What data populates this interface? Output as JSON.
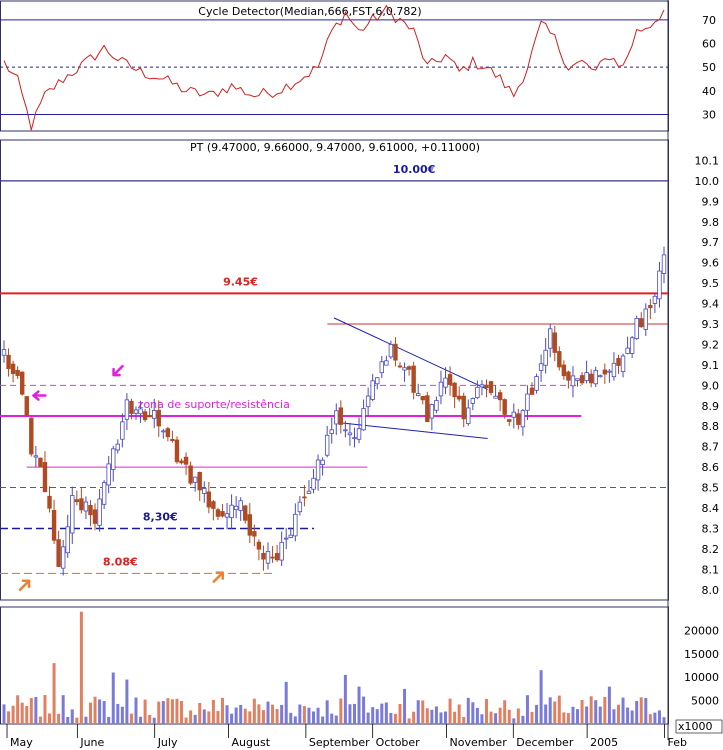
{
  "chart_data": {
    "type": "candlestick",
    "price_panel": {
      "title": "PT (9.47000, 9.66000, 9.47000, 9.61000, +0.11000)",
      "ylim": [
        7.95,
        10.2
      ],
      "ticks": [
        "8.0",
        "8.1",
        "8.2",
        "8.3",
        "8.4",
        "8.5",
        "8.6",
        "8.7",
        "8.8",
        "8.9",
        "9.0",
        "9.1",
        "9.2",
        "9.3",
        "9.4",
        "9.5",
        "9.6",
        "9.7",
        "9.8",
        "9.9",
        "10.0",
        "10.1"
      ],
      "anchors": [
        {
          "i": 0,
          "p": 9.15
        },
        {
          "i": 3,
          "p": 9.05
        },
        {
          "i": 6,
          "p": 8.7
        },
        {
          "i": 9,
          "p": 8.5
        },
        {
          "i": 12,
          "p": 8.1
        },
        {
          "i": 15,
          "p": 8.45
        },
        {
          "i": 20,
          "p": 8.35
        },
        {
          "i": 27,
          "p": 8.9
        },
        {
          "i": 33,
          "p": 8.85
        },
        {
          "i": 38,
          "p": 8.65
        },
        {
          "i": 43,
          "p": 8.5
        },
        {
          "i": 48,
          "p": 8.35
        },
        {
          "i": 52,
          "p": 8.4
        },
        {
          "i": 56,
          "p": 8.2
        },
        {
          "i": 60,
          "p": 8.15
        },
        {
          "i": 65,
          "p": 8.4
        },
        {
          "i": 69,
          "p": 8.6
        },
        {
          "i": 73,
          "p": 8.85
        },
        {
          "i": 77,
          "p": 8.75
        },
        {
          "i": 82,
          "p": 9.05
        },
        {
          "i": 85,
          "p": 9.2
        },
        {
          "i": 89,
          "p": 9.05
        },
        {
          "i": 93,
          "p": 8.85
        },
        {
          "i": 97,
          "p": 9.05
        },
        {
          "i": 101,
          "p": 8.85
        },
        {
          "i": 105,
          "p": 9.0
        },
        {
          "i": 109,
          "p": 8.9
        },
        {
          "i": 113,
          "p": 8.82
        },
        {
          "i": 117,
          "p": 9.05
        },
        {
          "i": 120,
          "p": 9.25
        },
        {
          "i": 124,
          "p": 9.0
        },
        {
          "i": 128,
          "p": 9.05
        },
        {
          "i": 132,
          "p": 9.05
        },
        {
          "i": 136,
          "p": 9.15
        },
        {
          "i": 139,
          "p": 9.3
        },
        {
          "i": 142,
          "p": 9.35
        },
        {
          "i": 145,
          "p": 9.61
        }
      ],
      "count": 146,
      "levels": [
        {
          "price": 10.0,
          "color": "#33338a",
          "width": 1.2,
          "dash": "",
          "x1": 0,
          "x2": 1,
          "label": "10.00€",
          "label_color": "#1a1aa0",
          "label_pos": 0.62
        },
        {
          "price": 9.45,
          "color": "#e02020",
          "width": 2,
          "dash": "",
          "x1": 0,
          "x2": 1,
          "label": "9.45€",
          "label_color": "#e02020",
          "label_pos": 0.36
        },
        {
          "price": 9.3,
          "color": "#c83030",
          "width": 1,
          "dash": "",
          "x1": 0.49,
          "x2": 1
        },
        {
          "price": 9.0,
          "color": "#d040d0",
          "width": 1,
          "dash": "6,4",
          "x1": 0,
          "x2": 0.87
        },
        {
          "price": 8.85,
          "color": "#e020e0",
          "width": 2,
          "dash": "",
          "x1": 0,
          "x2": 0.87,
          "label": "zona de suporte/resistência",
          "label_color": "#e020e0",
          "label_pos": 0.32
        },
        {
          "price": 8.6,
          "color": "#e020e0",
          "width": 1,
          "dash": "",
          "x1": 0.04,
          "x2": 0.55
        },
        {
          "price": 8.5,
          "color": "#307070",
          "width": 1,
          "dash": "6,4",
          "x1": 0,
          "x2": 1
        },
        {
          "price": 8.3,
          "color": "#1a1aa0",
          "width": 1.5,
          "dash": "8,4",
          "x1": 0,
          "x2": 0.47,
          "label": "8,30€",
          "label_color": "#1a1aa0",
          "label_pos": 0.24
        },
        {
          "price": 8.08,
          "color": "#e08030",
          "width": 1.2,
          "dash": "8,4",
          "x1": 0,
          "x2": 0.41,
          "label": "8.08€",
          "label_color": "#e02020",
          "label_pos": 0.18
        }
      ],
      "triangle": {
        "upper": [
          [
            0.5,
            9.33
          ],
          [
            0.73,
            8.98
          ]
        ],
        "lower": [
          [
            0.5,
            8.82
          ],
          [
            0.73,
            8.74
          ]
        ]
      },
      "arrows": [
        {
          "x": 0.03,
          "price": 8.0,
          "dir": "ne",
          "color": "#f08030"
        },
        {
          "x": 0.32,
          "price": 8.04,
          "dir": "ne",
          "color": "#f08030"
        },
        {
          "x": 0.05,
          "price": 8.95,
          "dir": "w",
          "color": "#e020e0"
        },
        {
          "x": 0.17,
          "price": 9.05,
          "dir": "sw",
          "color": "#e020e0"
        }
      ]
    },
    "oscillator_panel": {
      "title": "Cycle Detector(Median,666,FST,6,0.782)",
      "ylim": [
        23,
        78
      ],
      "ticks": [
        "30",
        "40",
        "50",
        "60",
        "70"
      ],
      "levels": [
        {
          "value": 70,
          "color": "#2020a0",
          "dash": ""
        },
        {
          "value": 50,
          "color": "#2020a0",
          "dash": "3,3"
        },
        {
          "value": 30,
          "color": "#2020a0",
          "dash": ""
        }
      ],
      "anchors": [
        {
          "i": 0,
          "v": 52
        },
        {
          "i": 3,
          "v": 44
        },
        {
          "i": 6,
          "v": 25
        },
        {
          "i": 9,
          "v": 38
        },
        {
          "i": 13,
          "v": 45
        },
        {
          "i": 18,
          "v": 52
        },
        {
          "i": 22,
          "v": 58
        },
        {
          "i": 26,
          "v": 52
        },
        {
          "i": 30,
          "v": 48
        },
        {
          "i": 35,
          "v": 45
        },
        {
          "i": 40,
          "v": 40
        },
        {
          "i": 45,
          "v": 38
        },
        {
          "i": 50,
          "v": 42
        },
        {
          "i": 55,
          "v": 38
        },
        {
          "i": 60,
          "v": 40
        },
        {
          "i": 65,
          "v": 45
        },
        {
          "i": 69,
          "v": 50
        },
        {
          "i": 72,
          "v": 65
        },
        {
          "i": 75,
          "v": 73
        },
        {
          "i": 78,
          "v": 65
        },
        {
          "i": 81,
          "v": 70
        },
        {
          "i": 84,
          "v": 74
        },
        {
          "i": 87,
          "v": 70
        },
        {
          "i": 90,
          "v": 65
        },
        {
          "i": 93,
          "v": 50
        },
        {
          "i": 97,
          "v": 55
        },
        {
          "i": 100,
          "v": 48
        },
        {
          "i": 103,
          "v": 52
        },
        {
          "i": 106,
          "v": 50
        },
        {
          "i": 109,
          "v": 45
        },
        {
          "i": 112,
          "v": 38
        },
        {
          "i": 115,
          "v": 50
        },
        {
          "i": 118,
          "v": 68
        },
        {
          "i": 121,
          "v": 62
        },
        {
          "i": 124,
          "v": 50
        },
        {
          "i": 127,
          "v": 52
        },
        {
          "i": 130,
          "v": 48
        },
        {
          "i": 133,
          "v": 55
        },
        {
          "i": 136,
          "v": 50
        },
        {
          "i": 139,
          "v": 65
        },
        {
          "i": 142,
          "v": 68
        },
        {
          "i": 145,
          "v": 74
        }
      ]
    },
    "volume_panel": {
      "unit": "x1000",
      "ylim": [
        0,
        25000
      ],
      "ticks": [
        "5000",
        "10000",
        "15000",
        "20000"
      ],
      "seed": 7,
      "spikes": [
        {
          "i": 11,
          "v": 13000
        },
        {
          "i": 17,
          "v": 24000
        },
        {
          "i": 24,
          "v": 11000
        },
        {
          "i": 27,
          "v": 9500
        },
        {
          "i": 62,
          "v": 9000
        },
        {
          "i": 75,
          "v": 10500
        },
        {
          "i": 78,
          "v": 8000
        },
        {
          "i": 88,
          "v": 7500
        },
        {
          "i": 118,
          "v": 11500
        },
        {
          "i": 133,
          "v": 8000
        }
      ]
    },
    "x_axis": {
      "labels": [
        {
          "text": "May",
          "i": 2
        },
        {
          "text": "June",
          "i": 22
        },
        {
          "text": "July",
          "i": 44
        },
        {
          "text": "August",
          "i": 65
        },
        {
          "text": "September",
          "i": 87
        },
        {
          "text": "October",
          "i": 106
        },
        {
          "text": "November",
          "i": 127
        },
        {
          "text": "December",
          "i": 146
        },
        {
          "text": "2005",
          "i": 167
        },
        {
          "text": "Feb",
          "i": 189
        }
      ],
      "span": 190
    },
    "colors": {
      "up": "#4a4ac0",
      "down": "#b04a20",
      "vol_up": "#7a7ad8",
      "vol_down": "#e08060",
      "osc_line": "#d02020",
      "frame": "#303060"
    }
  }
}
